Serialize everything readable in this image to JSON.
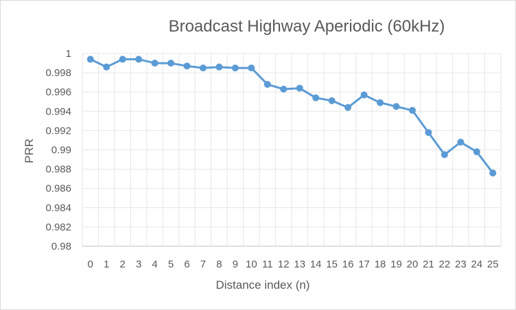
{
  "chart_data": {
    "type": "line",
    "title": "Broadcast Highway Aperiodic (60kHz)",
    "xlabel": "Distance index (n)",
    "ylabel": "PRR",
    "categories": [
      "0",
      "1",
      "2",
      "3",
      "4",
      "5",
      "6",
      "7",
      "8",
      "9",
      "10",
      "11",
      "12",
      "13",
      "14",
      "15",
      "16",
      "17",
      "18",
      "19",
      "20",
      "21",
      "22",
      "23",
      "24",
      "25"
    ],
    "yticks": [
      "0.98",
      "0.982",
      "0.984",
      "0.986",
      "0.988",
      "0.99",
      "0.992",
      "0.994",
      "0.996",
      "0.998",
      "1"
    ],
    "ylim": [
      0.98,
      1.0
    ],
    "grid": true,
    "legend": "none",
    "series": [
      {
        "values": [
          0.9994,
          0.9986,
          0.9994,
          0.9994,
          0.999,
          0.999,
          0.9987,
          0.9985,
          0.9986,
          0.9985,
          0.9985,
          0.9968,
          0.9963,
          0.9964,
          0.9954,
          0.9951,
          0.9944,
          0.9957,
          0.9949,
          0.9945,
          0.9941,
          0.9918,
          0.9895,
          0.9908,
          0.9898,
          0.9876
        ],
        "color": "#5b9bd5"
      }
    ]
  }
}
